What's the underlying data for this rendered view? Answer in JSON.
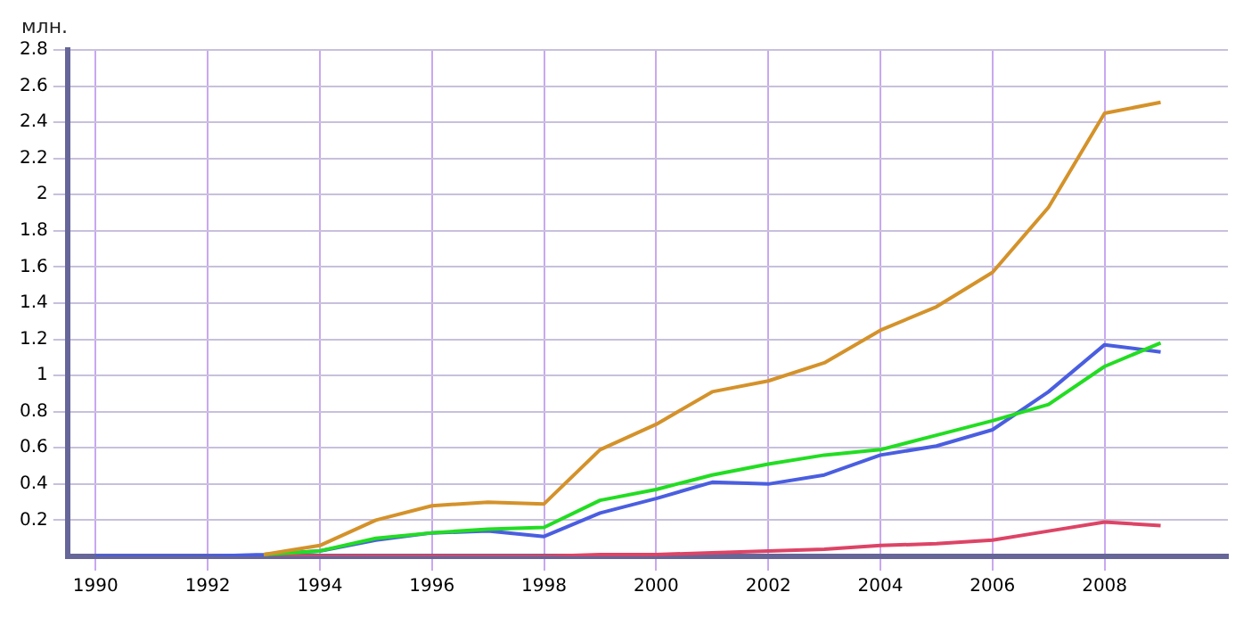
{
  "chart_data": {
    "type": "line",
    "ylabel": "млн.",
    "x": [
      1990,
      1991,
      1992,
      1993,
      1994,
      1995,
      1996,
      1997,
      1998,
      1999,
      2000,
      2001,
      2002,
      2003,
      2004,
      2005,
      2006,
      2007,
      2008,
      2009
    ],
    "series": [
      {
        "color": "#d4922a",
        "values": [
          null,
          null,
          null,
          0.01,
          0.06,
          0.2,
          0.28,
          0.3,
          0.29,
          0.59,
          0.73,
          0.91,
          0.97,
          1.07,
          1.25,
          1.38,
          1.57,
          1.93,
          2.45,
          2.51
        ]
      },
      {
        "color": "#22dd22",
        "values": [
          null,
          null,
          null,
          0.01,
          0.03,
          0.1,
          0.13,
          0.15,
          0.16,
          0.31,
          0.37,
          0.45,
          0.51,
          0.56,
          0.59,
          0.67,
          0.75,
          0.84,
          1.05,
          1.18
        ]
      },
      {
        "color": "#4a5ee0",
        "values": [
          0,
          0,
          0,
          0.01,
          0.03,
          0.09,
          0.13,
          0.14,
          0.11,
          0.24,
          0.32,
          0.41,
          0.4,
          0.45,
          0.56,
          0.61,
          0.7,
          0.91,
          1.17,
          1.13
        ]
      },
      {
        "color": "#dd4466",
        "values": [
          null,
          null,
          null,
          0,
          0,
          0,
          0,
          0,
          0,
          0.01,
          0.01,
          0.02,
          0.03,
          0.04,
          0.06,
          0.07,
          0.09,
          0.14,
          0.19,
          0.17
        ]
      }
    ],
    "xlim": [
      1989.5,
      2010.2
    ],
    "xticks": [
      1990,
      1992,
      1994,
      1996,
      1998,
      2000,
      2002,
      2004,
      2006,
      2008
    ],
    "ylim": [
      0,
      2.8
    ],
    "yticks": [
      0.2,
      0.4,
      0.6,
      0.8,
      1,
      1.2,
      1.4,
      1.6,
      1.8,
      2,
      2.2,
      2.4,
      2.6,
      2.8
    ],
    "grid": true,
    "legend": false
  }
}
